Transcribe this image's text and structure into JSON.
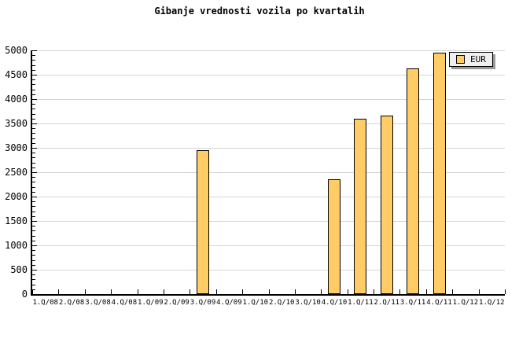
{
  "chart_data": {
    "type": "bar",
    "title": "Gibanje vrednosti vozila po kvartalih",
    "categories": [
      "1.Q/08",
      "2.Q/08",
      "3.Q/08",
      "4.Q/08",
      "1.Q/09",
      "2.Q/09",
      "3.Q/09",
      "4.Q/09",
      "1.Q/10",
      "2.Q/10",
      "3.Q/10",
      "4.Q/10",
      "1.Q/11",
      "2.Q/11",
      "3.Q/11",
      "4.Q/11",
      "1.Q/12",
      "1.Q/12"
    ],
    "series": [
      {
        "name": "EUR",
        "values": [
          null,
          null,
          null,
          null,
          null,
          null,
          2960,
          null,
          null,
          null,
          null,
          2360,
          3600,
          3660,
          4630,
          4950,
          null,
          null
        ]
      }
    ],
    "xlabel": "",
    "ylabel": "",
    "ylim": [
      0,
      5000
    ],
    "y_major_step": 500,
    "y_minor_step": 100,
    "grid": "horizontal-major-only",
    "legend_position": "top-right",
    "colors": {
      "bar_fill": "#FFCC66",
      "bar_border": "#000000",
      "gridline": "#D5D5D5",
      "axis": "#000000",
      "legend_background": "#F0F0F0",
      "legend_shadow": "#999999",
      "text": "#000000",
      "background": "#FFFFFF"
    }
  }
}
